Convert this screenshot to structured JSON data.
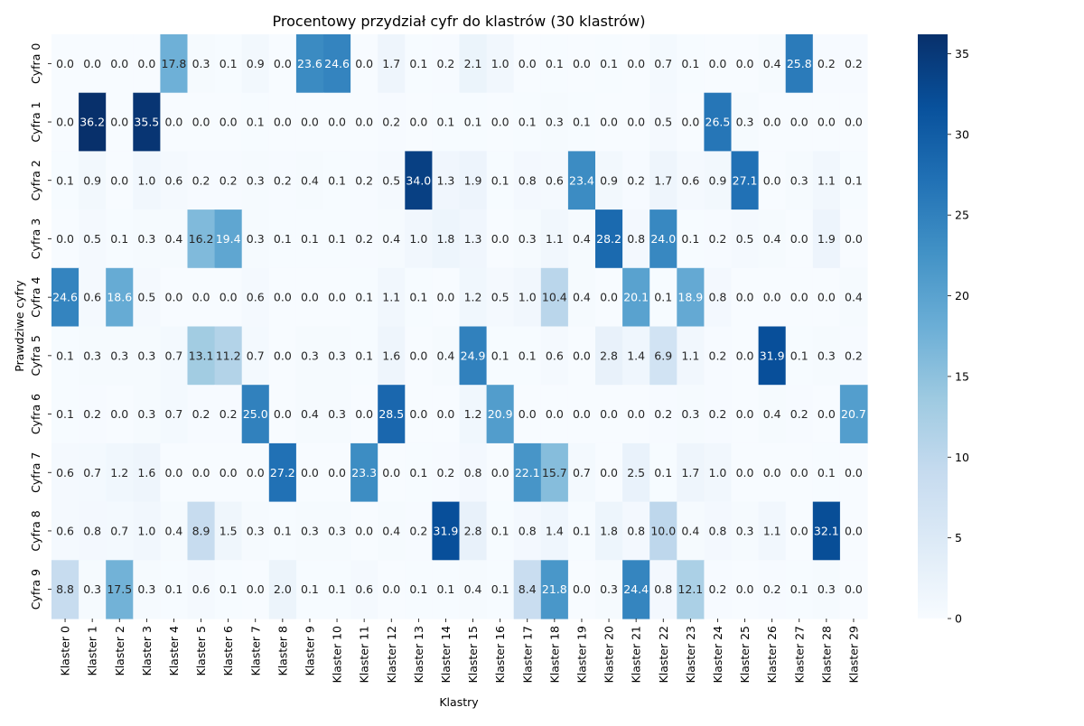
{
  "chart_data": {
    "type": "heatmap",
    "title": "Procentowy przydział cyfr do klastrów (30 klastrów)",
    "xlabel": "Klastry",
    "ylabel": "Prawdziwe cyfry",
    "columns": [
      "Klaster 0",
      "Klaster 1",
      "Klaster 2",
      "Klaster 3",
      "Klaster 4",
      "Klaster 5",
      "Klaster 6",
      "Klaster 7",
      "Klaster 8",
      "Klaster 9",
      "Klaster 10",
      "Klaster 11",
      "Klaster 12",
      "Klaster 13",
      "Klaster 14",
      "Klaster 15",
      "Klaster 16",
      "Klaster 17",
      "Klaster 18",
      "Klaster 19",
      "Klaster 20",
      "Klaster 21",
      "Klaster 22",
      "Klaster 23",
      "Klaster 24",
      "Klaster 25",
      "Klaster 26",
      "Klaster 27",
      "Klaster 28",
      "Klaster 29"
    ],
    "rows": [
      "Cyfra 0",
      "Cyfra 1",
      "Cyfra 2",
      "Cyfra 3",
      "Cyfra 4",
      "Cyfra 5",
      "Cyfra 6",
      "Cyfra 7",
      "Cyfra 8",
      "Cyfra 9"
    ],
    "values": [
      [
        0.0,
        0.0,
        0.0,
        0.0,
        17.8,
        0.3,
        0.1,
        0.9,
        0.0,
        23.6,
        24.6,
        0.0,
        1.7,
        0.1,
        0.2,
        2.1,
        1.0,
        0.0,
        0.1,
        0.0,
        0.1,
        0.0,
        0.7,
        0.1,
        0.0,
        0.0,
        0.4,
        25.8,
        0.2,
        0.2
      ],
      [
        0.0,
        36.2,
        0.0,
        35.5,
        0.0,
        0.0,
        0.0,
        0.1,
        0.0,
        0.0,
        0.0,
        0.0,
        0.2,
        0.0,
        0.1,
        0.1,
        0.0,
        0.1,
        0.3,
        0.1,
        0.0,
        0.0,
        0.5,
        0.0,
        26.5,
        0.3,
        0.0,
        0.0,
        0.0,
        0.0
      ],
      [
        0.1,
        0.9,
        0.0,
        1.0,
        0.6,
        0.2,
        0.2,
        0.3,
        0.2,
        0.4,
        0.1,
        0.2,
        0.5,
        34.0,
        1.3,
        1.9,
        0.1,
        0.8,
        0.6,
        23.4,
        0.9,
        0.2,
        1.7,
        0.6,
        0.9,
        27.1,
        0.0,
        0.3,
        1.1,
        0.1
      ],
      [
        0.0,
        0.5,
        0.1,
        0.3,
        0.4,
        16.2,
        19.4,
        0.3,
        0.1,
        0.1,
        0.1,
        0.2,
        0.4,
        1.0,
        1.8,
        1.3,
        0.0,
        0.3,
        1.1,
        0.4,
        28.2,
        0.8,
        24.0,
        0.1,
        0.2,
        0.5,
        0.4,
        0.0,
        1.9,
        0.0
      ],
      [
        24.6,
        0.6,
        18.6,
        0.5,
        0.0,
        0.0,
        0.0,
        0.6,
        0.0,
        0.0,
        0.0,
        0.1,
        1.1,
        0.1,
        0.0,
        1.2,
        0.5,
        1.0,
        10.4,
        0.4,
        0.0,
        20.1,
        0.1,
        18.9,
        0.8,
        0.0,
        0.0,
        0.0,
        0.0,
        0.4
      ],
      [
        0.1,
        0.3,
        0.3,
        0.3,
        0.7,
        13.1,
        11.2,
        0.7,
        0.0,
        0.3,
        0.3,
        0.1,
        1.6,
        0.0,
        0.4,
        24.9,
        0.1,
        0.1,
        0.6,
        0.0,
        2.8,
        1.4,
        6.9,
        1.1,
        0.2,
        0.0,
        31.9,
        0.1,
        0.3,
        0.2
      ],
      [
        0.1,
        0.2,
        0.0,
        0.3,
        0.7,
        0.2,
        0.2,
        25.0,
        0.0,
        0.4,
        0.3,
        0.0,
        28.5,
        0.0,
        0.0,
        1.2,
        20.9,
        0.0,
        0.0,
        0.0,
        0.0,
        0.0,
        0.2,
        0.3,
        0.2,
        0.0,
        0.4,
        0.2,
        0.0,
        20.7
      ],
      [
        0.6,
        0.7,
        1.2,
        1.6,
        0.0,
        0.0,
        0.0,
        0.0,
        27.2,
        0.0,
        0.0,
        23.3,
        0.0,
        0.1,
        0.2,
        0.8,
        0.0,
        22.1,
        15.7,
        0.7,
        0.0,
        2.5,
        0.1,
        1.7,
        1.0,
        0.0,
        0.0,
        0.0,
        0.1,
        0.0
      ],
      [
        0.6,
        0.8,
        0.7,
        1.0,
        0.4,
        8.9,
        1.5,
        0.3,
        0.1,
        0.3,
        0.3,
        0.0,
        0.4,
        0.2,
        31.9,
        2.8,
        0.1,
        0.8,
        1.4,
        0.1,
        1.8,
        0.8,
        10.0,
        0.4,
        0.8,
        0.3,
        1.1,
        0.0,
        32.1,
        0.0
      ],
      [
        8.8,
        0.3,
        17.5,
        0.3,
        0.1,
        0.6,
        0.1,
        0.0,
        2.0,
        0.1,
        0.1,
        0.6,
        0.0,
        0.1,
        0.1,
        0.4,
        0.1,
        8.4,
        21.8,
        0.0,
        0.3,
        24.4,
        0.8,
        12.1,
        0.2,
        0.0,
        0.2,
        0.1,
        0.3,
        0.0
      ]
    ],
    "value_format": "0.0",
    "colormap": "Blues",
    "vmin": 0,
    "vmax": 36.2,
    "colorbar_ticks": [
      "0",
      "5",
      "10",
      "15",
      "20",
      "25",
      "30",
      "35"
    ],
    "colorbar_tick_values": [
      0,
      5,
      10,
      15,
      20,
      25,
      30,
      35
    ]
  }
}
